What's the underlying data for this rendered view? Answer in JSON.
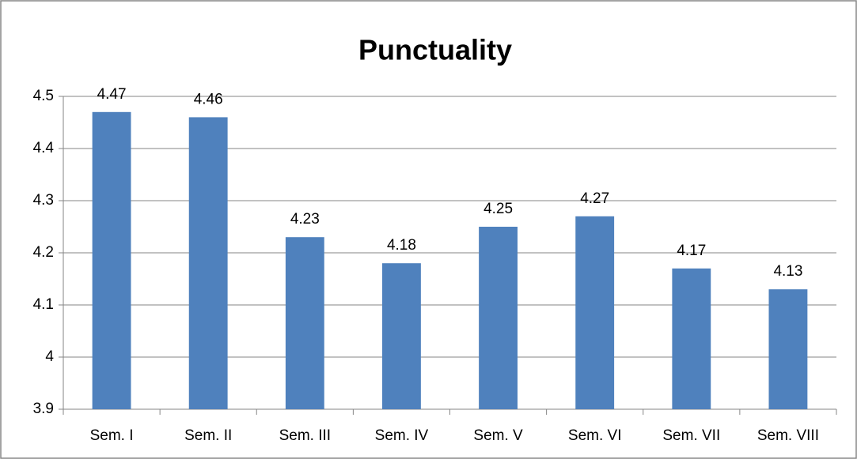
{
  "chart_data": {
    "type": "bar",
    "title": "Punctuality",
    "categories": [
      "Sem. I",
      "Sem. II",
      "Sem. III",
      "Sem. IV",
      "Sem. V",
      "Sem. VI",
      "Sem. VII",
      "Sem. VIII"
    ],
    "values": [
      4.47,
      4.46,
      4.23,
      4.18,
      4.25,
      4.27,
      4.17,
      4.13
    ],
    "color": "#4f81bd",
    "ylim": [
      3.9,
      4.5
    ],
    "yticks": [
      3.9,
      4,
      4.1,
      4.2,
      4.3,
      4.4,
      4.5
    ],
    "grid": true
  }
}
